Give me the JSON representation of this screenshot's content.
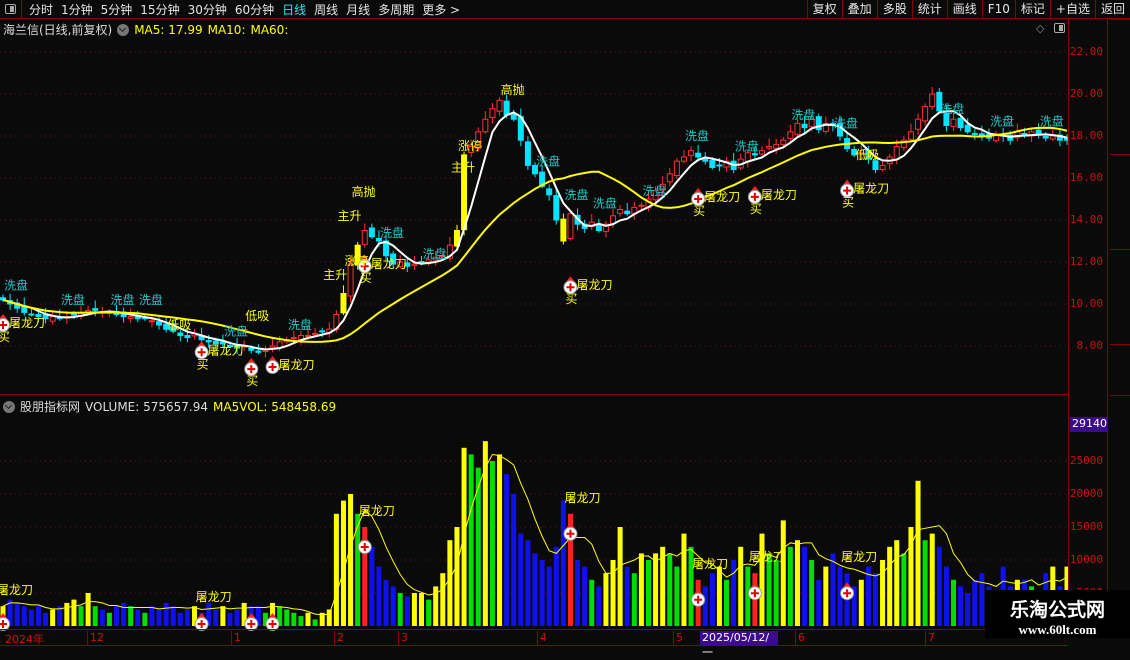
{
  "toolbar": {
    "tabs": [
      "分时",
      "1分钟",
      "5分钟",
      "15分钟",
      "30分钟",
      "60分钟",
      "日线",
      "周线",
      "月线",
      "多周期",
      "更多 >"
    ],
    "active_tab": "日线",
    "right_buttons": [
      "复权",
      "叠加",
      "多股",
      "统计",
      "画线",
      "F10",
      "标记",
      "+自选",
      "返回"
    ]
  },
  "main_header": {
    "title": "海兰信(日线,前复权)",
    "ma5": "MA5: 17.99",
    "ma10": "MA10:",
    "ma60": "MA60:"
  },
  "vol_header": {
    "name": "股朋指标网",
    "volume": "VOLUME: 575657.94",
    "ma5vol": "MA5VOL: 548458.69"
  },
  "price_axis": [
    "22.00",
    "20.00",
    "18.00",
    "16.00",
    "14.00",
    "12.00",
    "10.00",
    "8.00"
  ],
  "volume_axis": {
    "highlight": "29140",
    "ticks": [
      "25000",
      "20000",
      "15000",
      "10000",
      "5000"
    ]
  },
  "dates": {
    "labels": [
      "2024年",
      "12",
      "1",
      "2",
      "3",
      "4",
      "5",
      "6",
      "7"
    ],
    "selected": "2025/05/12/一"
  },
  "watermark": {
    "name": "乐淘公式网",
    "url": "www.60lt.com"
  },
  "colors": {
    "up": "#ff3030",
    "down": "#00e5ff",
    "ma_short": "#ffffff",
    "ma_long": "#ffff00",
    "signal_text": "#ffff00",
    "wash_text": "#20c8c8",
    "axis": "#cc1010"
  },
  "chart_data": {
    "type": "candlestick",
    "close": [
      10.2,
      10.0,
      9.8,
      9.6,
      9.5,
      9.4,
      9.3,
      9.4,
      9.3,
      9.4,
      9.5,
      9.6,
      9.7,
      9.7,
      9.6,
      9.6,
      9.5,
      9.4,
      9.4,
      9.3,
      9.3,
      9.2,
      9.0,
      8.8,
      8.7,
      8.5,
      8.4,
      8.6,
      8.3,
      8.2,
      8.1,
      8.1,
      8.0,
      7.9,
      8.0,
      7.8,
      7.7,
      7.8,
      8.0,
      8.2,
      8.3,
      8.4,
      8.5,
      8.5,
      8.6,
      8.7,
      8.8,
      9.5,
      10.5,
      11.9,
      12.8,
      13.5,
      13.2,
      13.0,
      12.3,
      11.9,
      12.0,
      11.8,
      11.9,
      12.0,
      12.1,
      12.2,
      12.3,
      12.8,
      13.5,
      17.1,
      17.5,
      18.2,
      18.8,
      19.3,
      19.7,
      19.0,
      18.8,
      17.8,
      16.6,
      16.2,
      15.6,
      15.2,
      14.0,
      13.0,
      14.3,
      13.8,
      13.6,
      13.9,
      13.5,
      13.8,
      14.2,
      14.5,
      14.3,
      14.6,
      14.7,
      15.0,
      15.4,
      15.7,
      16.2,
      16.8,
      17.0,
      17.3,
      17.0,
      16.8,
      16.5,
      16.6,
      16.8,
      16.4,
      16.9,
      17.2,
      17.1,
      17.3,
      17.5,
      17.6,
      17.8,
      18.2,
      18.6,
      18.4,
      18.8,
      18.3,
      18.6,
      18.5,
      18.0,
      17.4,
      17.1,
      17.2,
      16.9,
      16.4,
      16.6,
      17.0,
      17.5,
      17.8,
      18.2,
      18.8,
      19.4,
      20.0,
      19.2,
      18.5,
      18.8,
      18.4,
      18.2,
      18.1,
      18.0,
      17.9,
      18.1,
      18.0,
      17.8,
      18.2,
      18.0,
      18.2,
      18.1,
      17.9,
      18.0,
      17.8,
      17.8
    ],
    "volume": [
      3000,
      4000,
      3500,
      3000,
      2500,
      3000,
      2000,
      2500,
      3000,
      3500,
      4000,
      3000,
      5000,
      3000,
      2500,
      2000,
      3000,
      3500,
      3000,
      2500,
      2000,
      3000,
      2500,
      3500,
      3000,
      2000,
      2500,
      3000,
      2000,
      3500,
      2500,
      3000,
      2000,
      2500,
      3500,
      3000,
      3000,
      2000,
      3500,
      3000,
      2500,
      2000,
      1500,
      2000,
      1000,
      2000,
      2500,
      17000,
      19000,
      20000,
      17000,
      15000,
      12000,
      9000,
      7000,
      6000,
      5000,
      4500,
      5000,
      5000,
      4000,
      6000,
      8000,
      13000,
      15000,
      27000,
      26000,
      24000,
      28000,
      25000,
      26000,
      23000,
      20000,
      14000,
      13000,
      11000,
      10000,
      9000,
      12000,
      19000,
      17000,
      10000,
      9000,
      7000,
      6000,
      8000,
      10000,
      15000,
      9000,
      8000,
      11000,
      10000,
      11000,
      12000,
      11000,
      9000,
      14000,
      12000,
      7000,
      6000,
      8000,
      9000,
      7000,
      10000,
      12000,
      9000,
      8000,
      14000,
      11000,
      10000,
      16000,
      12000,
      13000,
      12000,
      10000,
      7000,
      9000,
      11000,
      9000,
      8000,
      6000,
      7000,
      9000,
      8000,
      10000,
      12000,
      13000,
      11000,
      15000,
      22000,
      13000,
      14000,
      12000,
      9000,
      7000,
      6000,
      5000,
      7000,
      8000,
      6000,
      4000,
      9000,
      6000,
      7000,
      7000,
      6000,
      5000,
      8000,
      9000,
      6000,
      9000
    ],
    "ylim": [
      7,
      23
    ],
    "volume_ylim": [
      0,
      29140
    ],
    "price_annotations": [
      {
        "text": "洗盘",
        "i": 1,
        "p": 10.7
      },
      {
        "text": "洗盘",
        "i": 9,
        "p": 10.0
      },
      {
        "text": "洗盘",
        "i": 16,
        "p": 10.0
      },
      {
        "text": "洗盘",
        "i": 20,
        "p": 10.0
      },
      {
        "text": "低吸",
        "i": 24,
        "p": 8.8
      },
      {
        "text": "洗盘",
        "i": 32,
        "p": 8.5
      },
      {
        "text": "低吸",
        "i": 35,
        "p": 7.9
      },
      {
        "text": "洗盘",
        "i": 41,
        "p": 8.8
      },
      {
        "text": "主升",
        "i": 48,
        "p": 14.0
      },
      {
        "text": "高抛",
        "i": 50,
        "p": 13.8
      },
      {
        "text": "主升",
        "i": 46,
        "p": 11.2
      },
      {
        "text": "涨停",
        "i": 49,
        "p": 11.2
      },
      {
        "text": "洗盘",
        "i": 54,
        "p": 13.2
      },
      {
        "text": "洗盘",
        "i": 60,
        "p": 12.2
      },
      {
        "text": "主升",
        "i": 64,
        "p": 16.3
      },
      {
        "text": "涨停",
        "i": 65,
        "p": 16.0
      },
      {
        "text": "高抛",
        "i": 71,
        "p": 20.0
      },
      {
        "text": "洗盘",
        "i": 76,
        "p": 16.6
      },
      {
        "text": "洗盘",
        "i": 80,
        "p": 15.0
      },
      {
        "text": "洗盘",
        "i": 84,
        "p": 14.6
      },
      {
        "text": "洗盘",
        "i": 91,
        "p": 15.2
      },
      {
        "text": "洗盘",
        "i": 97,
        "p": 17.8
      },
      {
        "text": "洗盘",
        "i": 104,
        "p": 17.3
      },
      {
        "text": "洗盘",
        "i": 112,
        "p": 18.8
      },
      {
        "text": "洗盘",
        "i": 118,
        "p": 18.4
      },
      {
        "text": "低吸",
        "i": 121,
        "p": 16.9
      },
      {
        "text": "洗盘",
        "i": 133,
        "p": 19.1
      },
      {
        "text": "洗盘",
        "i": 140,
        "p": 18.5
      },
      {
        "text": "洗盘",
        "i": 147,
        "p": 18.5
      }
    ],
    "price_buy_signals": [
      {
        "i": 0,
        "p": 9.0,
        "label": "屠龙刀",
        "sub": "买"
      },
      {
        "i": 28,
        "p": 7.7,
        "label": "屠龙刀",
        "sub": "买"
      },
      {
        "i": 35,
        "p": 6.9,
        "label": "",
        "sub": "买"
      },
      {
        "i": 38,
        "p": 7.0,
        "label": "屠龙刀",
        "sub": ""
      },
      {
        "i": 51,
        "p": 11.8,
        "label": "屠龙刀",
        "sub": "买"
      },
      {
        "i": 80,
        "p": 10.8,
        "label": "屠龙刀",
        "sub": "买"
      },
      {
        "i": 98,
        "p": 15.0,
        "label": "屠龙刀",
        "sub": "买"
      },
      {
        "i": 106,
        "p": 15.1,
        "label": "屠龙刀",
        "sub": "买"
      },
      {
        "i": 119,
        "p": 15.4,
        "label": "屠龙刀",
        "sub": "买"
      }
    ],
    "volume_signals": [
      {
        "i": 0,
        "label": "屠龙刀"
      },
      {
        "i": 28,
        "label": "屠龙刀"
      },
      {
        "i": 35,
        "label": ""
      },
      {
        "i": 38,
        "label": ""
      },
      {
        "i": 51,
        "label": "屠龙刀"
      },
      {
        "i": 80,
        "label": "屠龙刀"
      },
      {
        "i": 98,
        "label": "屠龙刀"
      },
      {
        "i": 106,
        "label": "屠龙刀"
      },
      {
        "i": 119,
        "label": "屠龙刀"
      }
    ]
  }
}
